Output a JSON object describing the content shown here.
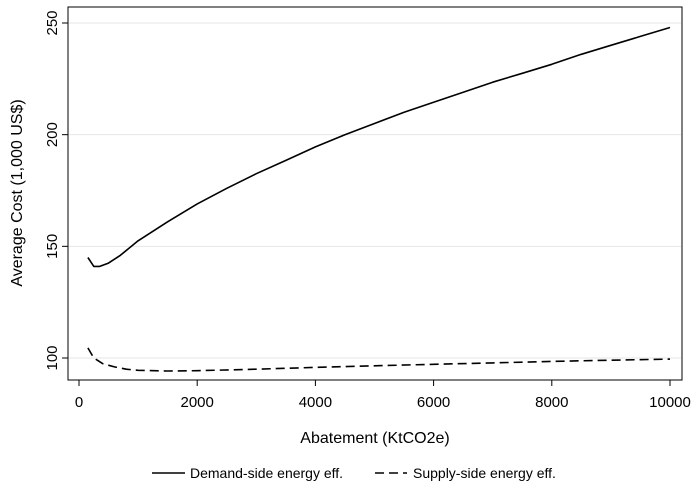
{
  "chart_data": {
    "type": "line",
    "title": "",
    "xlabel": "Abatement (KtCO2e)",
    "ylabel": "Average Cost (1,000 US$)",
    "xlim": [
      0,
      10000
    ],
    "ylim": [
      92,
      253
    ],
    "xticks": [
      0,
      2000,
      4000,
      6000,
      8000,
      10000
    ],
    "yticks": [
      100,
      150,
      200,
      250
    ],
    "xtick_labels": [
      "0",
      "2000",
      "4000",
      "6000",
      "8000",
      "10000"
    ],
    "ytick_labels": [
      "100",
      "150",
      "200",
      "250"
    ],
    "grid": "horizontal",
    "legend_position": "bottom",
    "series": [
      {
        "name": "Demand-side energy eff.",
        "style": "solid",
        "color": "#000000",
        "x": [
          150,
          250,
          350,
          500,
          700,
          1000,
          1500,
          2000,
          2500,
          3000,
          3500,
          4000,
          4500,
          5000,
          5500,
          6000,
          6500,
          7000,
          7500,
          8000,
          8500,
          9000,
          9500,
          10000
        ],
        "y": [
          145,
          141,
          141,
          142.5,
          146,
          152.5,
          161,
          169,
          176,
          182.5,
          188.5,
          194.5,
          200,
          205,
          210,
          214.5,
          219,
          223.5,
          227.5,
          231.5,
          236,
          240,
          244,
          248
        ]
      },
      {
        "name": "Supply-side energy eff.",
        "style": "dashed",
        "color": "#000000",
        "x": [
          150,
          250,
          400,
          600,
          800,
          1000,
          1500,
          2000,
          3000,
          4000,
          5000,
          6000,
          7000,
          8000,
          9000,
          10000
        ],
        "y": [
          104.5,
          100,
          97.5,
          96,
          95,
          94.5,
          94.2,
          94.3,
          95,
          95.8,
          96.5,
          97.2,
          97.8,
          98.5,
          99,
          99.5
        ]
      }
    ]
  }
}
